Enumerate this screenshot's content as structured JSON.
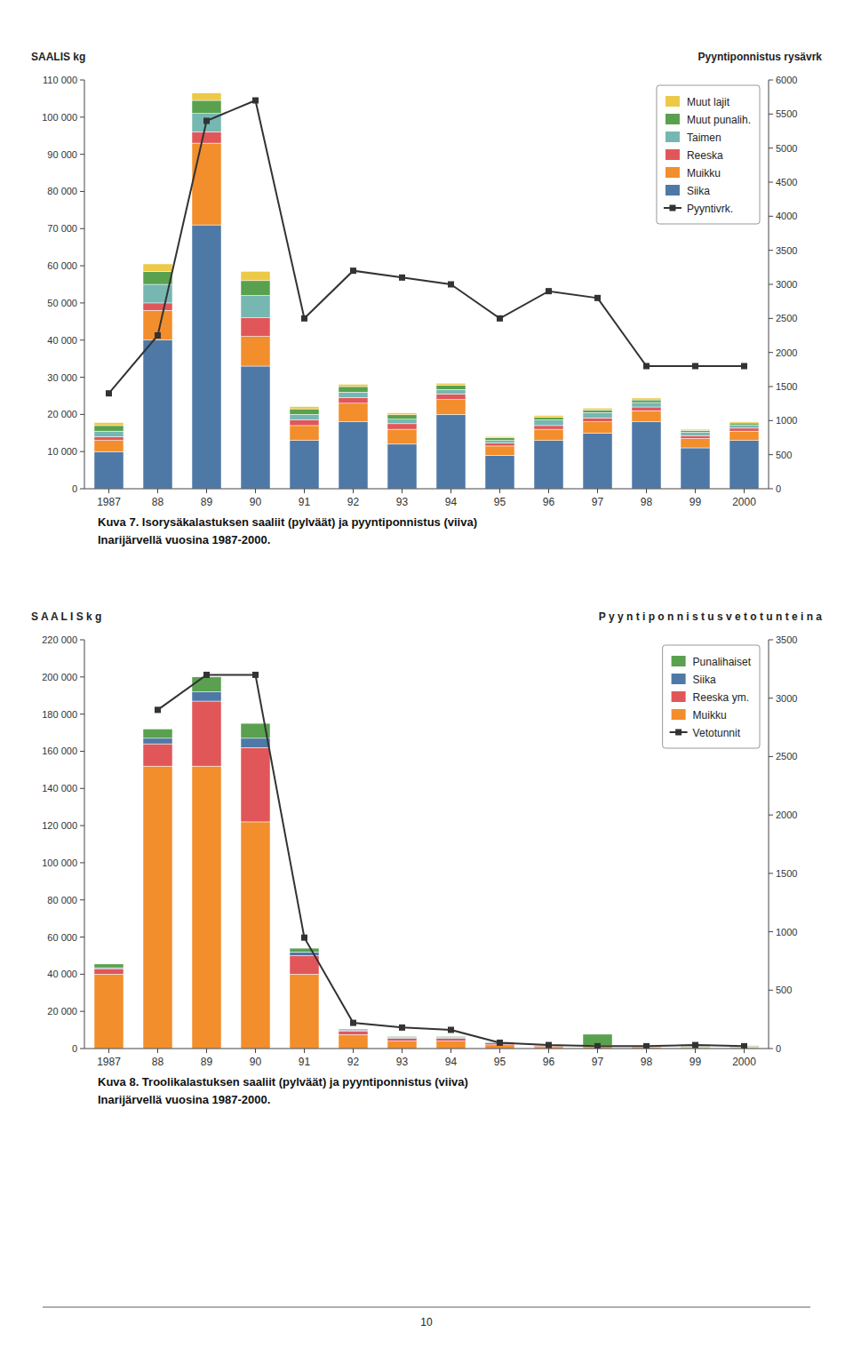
{
  "chart_data": [
    {
      "type": "bar",
      "stacked": true,
      "title": "Kuva 7.  Isorysäkalastuksen saaliit (pylväät) ja pyyntiponnistus (viiva)\nInarijärvellä vuosina 1987-2000.",
      "ylabel": "SAALIS kg",
      "y2label": "Pyyntiponnistus rysävrk",
      "categories": [
        "1987",
        "88",
        "89",
        "90",
        "91",
        "92",
        "93",
        "94",
        "95",
        "96",
        "97",
        "98",
        "99",
        "2000"
      ],
      "series": [
        {
          "name": "Siika",
          "type": "bar",
          "color": "#4e79a7",
          "values": [
            10000,
            40000,
            71000,
            33000,
            13000,
            18000,
            12000,
            20000,
            9000,
            13000,
            15000,
            18000,
            11000,
            13000
          ]
        },
        {
          "name": "Muikku",
          "type": "bar",
          "color": "#f28e2b",
          "values": [
            3000,
            8000,
            22000,
            8000,
            4000,
            5000,
            4000,
            4000,
            2500,
            3000,
            3000,
            3000,
            2500,
            2500
          ]
        },
        {
          "name": "Reeska",
          "type": "bar",
          "color": "#e15759",
          "values": [
            1000,
            2000,
            3000,
            5000,
            1500,
            1500,
            1500,
            1500,
            800,
            1000,
            1000,
            1000,
            800,
            800
          ]
        },
        {
          "name": "Taimen",
          "type": "bar",
          "color": "#76b7b2",
          "values": [
            1500,
            5000,
            5000,
            6000,
            1500,
            1500,
            1200,
            1200,
            700,
            1500,
            1500,
            1200,
            900,
            900
          ]
        },
        {
          "name": "Muut punalih.",
          "type": "bar",
          "color": "#59a14f",
          "values": [
            1500,
            3500,
            3500,
            4000,
            1500,
            1500,
            1200,
            1200,
            700,
            700,
            700,
            700,
            500,
            500
          ]
        },
        {
          "name": "Muut lajit",
          "type": "bar",
          "color": "#edc948",
          "values": [
            800,
            2000,
            2000,
            2500,
            600,
            600,
            500,
            500,
            350,
            500,
            500,
            500,
            300,
            300
          ]
        },
        {
          "name": "Pyyntivrk.",
          "type": "line",
          "axis": "y2",
          "marker": "square",
          "color": "#333333",
          "values": [
            1400,
            2250,
            5400,
            5700,
            2500,
            3200,
            3100,
            3000,
            2500,
            2900,
            2800,
            1800,
            1800,
            1800
          ]
        }
      ],
      "ylim": [
        0,
        110000
      ],
      "yticks": [
        0,
        {
          "value": 10000,
          "label": "10 000"
        },
        {
          "value": 20000,
          "label": "20 000"
        },
        {
          "value": 30000,
          "label": "30 000"
        },
        {
          "value": 40000,
          "label": "40 000"
        },
        {
          "value": 50000,
          "label": "50 000"
        },
        {
          "value": 60000,
          "label": "60 000"
        },
        {
          "value": 70000,
          "label": "70 000"
        },
        {
          "value": 80000,
          "label": "80 000"
        },
        {
          "value": 90000,
          "label": "90 000"
        },
        {
          "value": 100000,
          "label": "100 000"
        },
        {
          "value": 110000,
          "label": "110 000"
        }
      ],
      "y2lim": [
        0,
        6000
      ],
      "y2ticks": [
        0,
        500,
        1000,
        1500,
        2000,
        2500,
        3000,
        3500,
        4000,
        4500,
        5000,
        5500,
        6000
      ],
      "grid": false,
      "legend": "upper right"
    },
    {
      "type": "bar",
      "stacked": true,
      "title": "Kuva 8.  Troolikalastuksen saaliit (pylväät) ja pyyntiponnistus (viiva)\nInarijärvellä vuosina 1987-2000.",
      "ylabel": "S A A L I S  k g",
      "y2label": "P y y n t i p o n n i s t u s  v e t o t u n t e i n a",
      "categories": [
        "1987",
        "88",
        "89",
        "90",
        "91",
        "92",
        "93",
        "94",
        "95",
        "96",
        "97",
        "98",
        "99",
        "2000"
      ],
      "series": [
        {
          "name": "Muikku",
          "type": "bar",
          "color": "#f28e2b",
          "values": [
            40000,
            152000,
            152000,
            122000,
            40000,
            7500,
            4000,
            4000,
            2000,
            1000,
            1000,
            800,
            500,
            500
          ]
        },
        {
          "name": "Reeska ym.",
          "type": "bar",
          "color": "#e15759",
          "values": [
            3000,
            12000,
            35000,
            40000,
            10000,
            2000,
            1500,
            1500,
            1000,
            500,
            500,
            500,
            400,
            400
          ]
        },
        {
          "name": "Siika",
          "type": "bar",
          "color": "#4e79a7",
          "values": [
            500,
            3000,
            5000,
            5000,
            2000,
            500,
            500,
            500,
            300,
            200,
            200,
            200,
            200,
            200
          ]
        },
        {
          "name": "Punalihaiset",
          "type": "bar",
          "color": "#59a14f",
          "values": [
            2000,
            5000,
            8000,
            8000,
            2000,
            500,
            500,
            500,
            300,
            200,
            6000,
            200,
            1000,
            400
          ]
        },
        {
          "name": "Vetotunnit",
          "type": "line",
          "axis": "y2",
          "marker": "square",
          "color": "#333333",
          "values": [
            null,
            2900,
            3200,
            3200,
            950,
            220,
            180,
            160,
            50,
            30,
            20,
            20,
            30,
            20
          ]
        }
      ],
      "ylim": [
        0,
        220000
      ],
      "yticks": [
        0,
        {
          "value": 20000,
          "label": "20 000"
        },
        {
          "value": 40000,
          "label": "40 000"
        },
        {
          "value": 60000,
          "label": "60 000"
        },
        {
          "value": 80000,
          "label": "80 000"
        },
        {
          "value": 100000,
          "label": "100 000"
        },
        {
          "value": 120000,
          "label": "120 000"
        },
        {
          "value": 140000,
          "label": "140 000"
        },
        {
          "value": 160000,
          "label": "160 000"
        },
        {
          "value": 180000,
          "label": "180 000"
        },
        {
          "value": 200000,
          "label": "200 000"
        },
        {
          "value": 220000,
          "label": "220 000"
        }
      ],
      "y2lim": [
        0,
        3500
      ],
      "y2ticks": [
        0,
        500,
        1000,
        1500,
        2000,
        2500,
        3000,
        3500
      ],
      "grid": false,
      "legend": "upper right"
    }
  ],
  "page_number": "10"
}
